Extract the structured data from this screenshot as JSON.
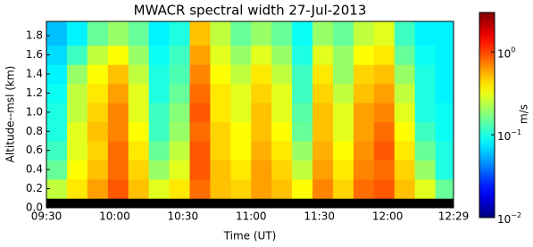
{
  "chart_data": {
    "type": "heatmap",
    "title": "MWACR spectral width    27-Jul-2013",
    "xlabel": "Time (UT)",
    "ylabel": "Altitude--msl (km)",
    "colorbar_label": "m/s",
    "xlim": [
      570,
      749
    ],
    "xticks": [
      {
        "value": 570,
        "label": "09:30"
      },
      {
        "value": 600,
        "label": "10:00"
      },
      {
        "value": 630,
        "label": "10:30"
      },
      {
        "value": 660,
        "label": "11:00"
      },
      {
        "value": 690,
        "label": "11:30"
      },
      {
        "value": 720,
        "label": "12:00"
      },
      {
        "value": 749,
        "label": "12:29"
      }
    ],
    "ylim": [
      0,
      1.95
    ],
    "yticks": [
      {
        "value": 0,
        "label": "0.0"
      },
      0.2,
      0.4,
      0.6,
      0.8,
      {
        "value": 1,
        "label": "1.0"
      },
      1.2,
      1.4,
      1.6,
      1.8
    ],
    "x_edges": [
      570,
      579,
      588,
      597,
      606,
      615,
      624,
      633,
      642,
      651,
      660,
      669,
      678,
      687,
      696,
      705,
      714,
      723,
      732,
      741,
      749
    ],
    "y_edges": [
      0,
      0.1,
      0.3,
      0.5,
      0.7,
      0.9,
      1.1,
      1.3,
      1.5,
      1.7,
      1.95
    ],
    "values": [
      [
        null,
        null,
        null,
        null,
        null,
        null,
        null,
        null,
        null,
        null,
        null,
        null,
        null,
        null,
        null,
        null,
        null,
        null,
        null,
        null
      ],
      [
        0.25,
        0.4,
        0.6,
        0.9,
        0.5,
        0.3,
        0.4,
        0.8,
        0.5,
        0.45,
        0.6,
        0.5,
        0.35,
        0.7,
        0.45,
        0.8,
        0.9,
        0.5,
        0.3,
        0.15
      ],
      [
        0.15,
        0.35,
        0.5,
        0.8,
        0.45,
        0.2,
        0.3,
        0.9,
        0.5,
        0.4,
        0.6,
        0.45,
        0.25,
        0.6,
        0.4,
        0.7,
        0.8,
        0.45,
        0.2,
        0.1
      ],
      [
        0.12,
        0.3,
        0.45,
        0.8,
        0.4,
        0.15,
        0.25,
        0.9,
        0.45,
        0.35,
        0.55,
        0.4,
        0.2,
        0.55,
        0.35,
        0.65,
        0.9,
        0.4,
        0.15,
        0.1
      ],
      [
        0.1,
        0.3,
        0.5,
        0.7,
        0.35,
        0.12,
        0.2,
        0.8,
        0.45,
        0.35,
        0.5,
        0.35,
        0.15,
        0.5,
        0.3,
        0.6,
        0.8,
        0.35,
        0.12,
        0.09
      ],
      [
        0.1,
        0.25,
        0.45,
        0.7,
        0.3,
        0.12,
        0.18,
        0.9,
        0.4,
        0.3,
        0.5,
        0.3,
        0.14,
        0.5,
        0.3,
        0.6,
        0.7,
        0.3,
        0.1,
        0.09
      ],
      [
        0.09,
        0.25,
        0.4,
        0.6,
        0.3,
        0.1,
        0.15,
        0.8,
        0.4,
        0.3,
        0.45,
        0.3,
        0.12,
        0.45,
        0.25,
        0.5,
        0.6,
        0.25,
        0.1,
        0.08
      ],
      [
        0.08,
        0.2,
        0.35,
        0.5,
        0.25,
        0.1,
        0.13,
        0.7,
        0.35,
        0.25,
        0.4,
        0.25,
        0.12,
        0.4,
        0.2,
        0.45,
        0.5,
        0.2,
        0.1,
        0.08
      ],
      [
        0.07,
        0.12,
        0.25,
        0.35,
        0.2,
        0.09,
        0.12,
        0.6,
        0.3,
        0.2,
        0.3,
        0.2,
        0.1,
        0.3,
        0.2,
        0.35,
        0.4,
        0.15,
        0.09,
        0.08
      ],
      [
        0.06,
        0.08,
        0.15,
        0.2,
        0.15,
        0.08,
        0.1,
        0.5,
        0.25,
        0.15,
        0.2,
        0.15,
        0.09,
        0.2,
        0.15,
        0.25,
        0.3,
        0.12,
        0.08,
        0.08
      ]
    ],
    "missing_color": "#000000",
    "colormap": "jet",
    "color_scale": "log",
    "clim": [
      0.01,
      3
    ],
    "cticks": [
      {
        "value": 0.01,
        "label": "10",
        "exponent": "−2"
      },
      {
        "value": 0.1,
        "label": "10",
        "exponent": "−1"
      },
      {
        "value": 1,
        "label": "10",
        "exponent": "0"
      }
    ]
  }
}
